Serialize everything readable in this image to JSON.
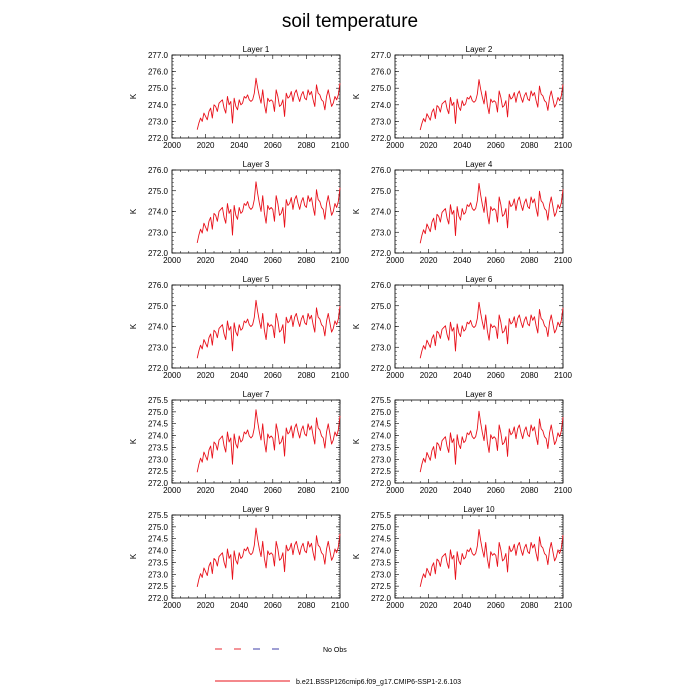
{
  "chart_data": {
    "type": "line",
    "title": "soil temperature",
    "xlabel": "",
    "ylabel": "K",
    "xlim": [
      2000,
      2100
    ],
    "xticks": [
      "2000",
      "2020",
      "2040",
      "2060",
      "2080",
      "2100"
    ],
    "series_color": "#e8101a",
    "obs_color_a": "#e8101a",
    "obs_color_b": "#2a2aa0",
    "legend": [
      {
        "label": "No Obs",
        "style": "dashed"
      },
      {
        "label": "b.e21.BSSP126cmip6.f09_g17.CMIP6-SSP1-2.6.103",
        "style": "solid"
      }
    ],
    "base_years": [
      2015,
      2100
    ],
    "base_series": [
      272.5,
      272.9,
      273.2,
      273.0,
      273.5,
      273.3,
      273.1,
      273.6,
      273.8,
      273.2,
      274.0,
      273.9,
      273.6,
      274.1,
      274.2,
      274.3,
      273.8,
      273.5,
      274.5,
      274.0,
      274.2,
      272.9,
      274.4,
      273.9,
      273.7,
      274.3,
      274.0,
      274.1,
      274.5,
      274.4,
      274.6,
      274.3,
      274.2,
      274.3,
      274.7,
      275.6,
      275.0,
      274.5,
      274.1,
      274.9,
      274.0,
      273.5,
      274.4,
      274.2,
      274.3,
      274.2,
      273.6,
      274.9,
      274.5,
      273.9,
      274.0,
      274.3,
      273.3,
      274.7,
      274.4,
      274.5,
      274.8,
      274.2,
      274.7,
      274.9,
      274.5,
      274.2,
      274.6,
      274.8,
      274.4,
      274.3,
      274.9,
      274.6,
      274.8,
      274.3,
      273.9,
      275.2,
      274.7,
      274.6,
      274.3,
      274.2,
      273.7,
      274.5,
      274.9,
      274.4,
      273.9,
      274.1,
      274.5,
      274.3,
      274.6,
      275.3
    ],
    "panels": [
      {
        "title": "Layer 1",
        "ylim": [
          272.0,
          277.0
        ],
        "yticks": [
          "272.0",
          "273.0",
          "274.0",
          "275.0",
          "276.0",
          "277.0"
        ],
        "offset": 0.0,
        "amp": 1.0
      },
      {
        "title": "Layer 2",
        "ylim": [
          272.0,
          277.0
        ],
        "yticks": [
          "272.0",
          "273.0",
          "274.0",
          "275.0",
          "276.0",
          "277.0"
        ],
        "offset": -0.05,
        "amp": 0.98
      },
      {
        "title": "Layer 3",
        "ylim": [
          272.0,
          276.0
        ],
        "yticks": [
          "272.0",
          "273.0",
          "274.0",
          "275.0",
          "276.0"
        ],
        "offset": -0.1,
        "amp": 0.95
      },
      {
        "title": "Layer 4",
        "ylim": [
          272.0,
          276.0
        ],
        "yticks": [
          "272.0",
          "273.0",
          "274.0",
          "275.0",
          "276.0"
        ],
        "offset": -0.15,
        "amp": 0.93
      },
      {
        "title": "Layer 5",
        "ylim": [
          272.0,
          276.0
        ],
        "yticks": [
          "272.0",
          "273.0",
          "274.0",
          "275.0",
          "276.0"
        ],
        "offset": -0.2,
        "amp": 0.9
      },
      {
        "title": "Layer 6",
        "ylim": [
          272.0,
          276.0
        ],
        "yticks": [
          "272.0",
          "273.0",
          "274.0",
          "275.0",
          "276.0"
        ],
        "offset": -0.25,
        "amp": 0.87
      },
      {
        "title": "Layer 7",
        "ylim": [
          272.0,
          275.5
        ],
        "yticks": [
          "272.0",
          "272.5",
          "273.0",
          "273.5",
          "274.0",
          "274.5",
          "275.0",
          "275.5"
        ],
        "offset": -0.3,
        "amp": 0.85
      },
      {
        "title": "Layer 8",
        "ylim": [
          272.0,
          275.5
        ],
        "yticks": [
          "272.0",
          "272.5",
          "273.0",
          "273.5",
          "274.0",
          "274.5",
          "275.0",
          "275.5"
        ],
        "offset": -0.33,
        "amp": 0.83
      },
      {
        "title": "Layer 9",
        "ylim": [
          272.0,
          275.5
        ],
        "yticks": [
          "272.0",
          "272.5",
          "273.0",
          "273.5",
          "274.0",
          "274.5",
          "275.0",
          "275.5"
        ],
        "offset": -0.37,
        "amp": 0.8
      },
      {
        "title": "Layer 10",
        "ylim": [
          272.0,
          275.5
        ],
        "yticks": [
          "272.0",
          "272.5",
          "273.0",
          "273.5",
          "274.0",
          "274.5",
          "275.0",
          "275.5"
        ],
        "offset": -0.4,
        "amp": 0.78
      }
    ]
  }
}
